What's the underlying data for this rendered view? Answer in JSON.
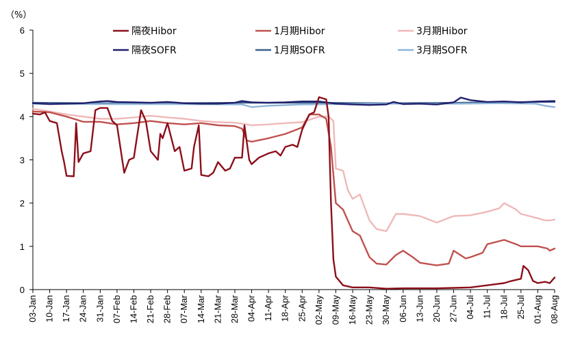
{
  "chart_data": {
    "type": "line",
    "title": "",
    "xlabel": "",
    "ylabel": "",
    "unit_label": "（%）",
    "ylim": [
      0,
      6
    ],
    "yticks": [
      "0",
      "1",
      "2",
      "3",
      "4",
      "5",
      "6"
    ],
    "x_dates": [
      "2025-01-03",
      "2025-01-10",
      "2025-01-17",
      "2025-01-24",
      "2025-01-31",
      "2025-02-07",
      "2025-02-14",
      "2025-02-21",
      "2025-02-28",
      "2025-03-07",
      "2025-03-14",
      "2025-03-21",
      "2025-03-28",
      "2025-04-04",
      "2025-04-11",
      "2025-04-18",
      "2025-04-25",
      "2025-05-02",
      "2025-05-09",
      "2025-05-16",
      "2025-05-23",
      "2025-05-30",
      "2025-06-06",
      "2025-06-13",
      "2025-06-20",
      "2025-06-27",
      "2025-07-04",
      "2025-07-11",
      "2025-07-18",
      "2025-07-25",
      "2025-08-01",
      "2025-08-08"
    ],
    "xtick_labels": [
      "03-Jan",
      "10-Jan",
      "17-Jan",
      "24-Jan",
      "31-Jan",
      "07-Feb",
      "14-Feb",
      "21-Feb",
      "28-Feb",
      "07-Mar",
      "14-Mar",
      "21-Mar",
      "28-Mar",
      "04-Apr",
      "11-Apr",
      "18-Apr",
      "25-Apr",
      "02-May",
      "09-May",
      "16-May",
      "23-May",
      "30-May",
      "06-Jun",
      "13-Jun",
      "20-Jun",
      "27-Jun",
      "04-Jul",
      "11-Jul",
      "18-Jul",
      "25-Jul",
      "01-Aug",
      "08-Aug"
    ],
    "grid": false,
    "legend_position": "top",
    "series": [
      {
        "name": "隔夜Hibor",
        "color": "#8b0f1a",
        "x": [
          "2025-01-03",
          "2025-01-06",
          "2025-01-08",
          "2025-01-10",
          "2025-01-13",
          "2025-01-15",
          "2025-01-16",
          "2025-01-17",
          "2025-01-20",
          "2025-01-21",
          "2025-01-22",
          "2025-01-24",
          "2025-01-27",
          "2025-01-29",
          "2025-01-31",
          "2025-02-03",
          "2025-02-05",
          "2025-02-07",
          "2025-02-10",
          "2025-02-12",
          "2025-02-14",
          "2025-02-17",
          "2025-02-19",
          "2025-02-21",
          "2025-02-24",
          "2025-02-25",
          "2025-02-26",
          "2025-02-28",
          "2025-03-03",
          "2025-03-05",
          "2025-03-07",
          "2025-03-10",
          "2025-03-11",
          "2025-03-13",
          "2025-03-14",
          "2025-03-17",
          "2025-03-19",
          "2025-03-21",
          "2025-03-24",
          "2025-03-26",
          "2025-03-28",
          "2025-03-31",
          "2025-04-01",
          "2025-04-03",
          "2025-04-04",
          "2025-04-07",
          "2025-04-09",
          "2025-04-11",
          "2025-04-14",
          "2025-04-16",
          "2025-04-18",
          "2025-04-21",
          "2025-04-23",
          "2025-04-25",
          "2025-04-28",
          "2025-04-30",
          "2025-05-02",
          "2025-05-05",
          "2025-05-06",
          "2025-05-07",
          "2025-05-08",
          "2025-05-09",
          "2025-05-12",
          "2025-05-16",
          "2025-05-23",
          "2025-05-30",
          "2025-06-06",
          "2025-06-13",
          "2025-06-20",
          "2025-06-27",
          "2025-07-04",
          "2025-07-11",
          "2025-07-18",
          "2025-07-21",
          "2025-07-25",
          "2025-07-26",
          "2025-07-28",
          "2025-07-30",
          "2025-08-01",
          "2025-08-04",
          "2025-08-06",
          "2025-08-08"
        ],
        "y": [
          4.07,
          4.05,
          4.1,
          3.9,
          3.85,
          3.2,
          2.95,
          2.63,
          2.62,
          3.85,
          2.95,
          3.15,
          3.2,
          4.15,
          4.2,
          4.2,
          3.9,
          3.8,
          2.7,
          3.0,
          3.05,
          4.15,
          3.9,
          3.2,
          3.0,
          3.6,
          3.5,
          3.85,
          3.2,
          3.3,
          2.75,
          2.8,
          3.3,
          3.8,
          2.65,
          2.62,
          2.7,
          2.95,
          2.75,
          2.8,
          3.05,
          3.05,
          3.8,
          3.0,
          2.9,
          3.05,
          3.1,
          3.15,
          3.2,
          3.1,
          3.3,
          3.35,
          3.3,
          3.7,
          4.05,
          4.1,
          4.45,
          4.4,
          4.0,
          2.0,
          0.7,
          0.3,
          0.1,
          0.05,
          0.05,
          0.02,
          0.03,
          0.03,
          0.03,
          0.04,
          0.05,
          0.1,
          0.15,
          0.2,
          0.25,
          0.55,
          0.45,
          0.2,
          0.15,
          0.18,
          0.15,
          0.28
        ]
      },
      {
        "name": "1月期Hibor",
        "color": "#c0504d",
        "x": [
          "2025-01-03",
          "2025-01-10",
          "2025-01-17",
          "2025-01-24",
          "2025-01-31",
          "2025-02-07",
          "2025-02-14",
          "2025-02-21",
          "2025-02-28",
          "2025-03-07",
          "2025-03-14",
          "2025-03-21",
          "2025-03-28",
          "2025-03-31",
          "2025-04-02",
          "2025-04-04",
          "2025-04-11",
          "2025-04-18",
          "2025-04-25",
          "2025-04-28",
          "2025-05-02",
          "2025-05-05",
          "2025-05-07",
          "2025-05-09",
          "2025-05-12",
          "2025-05-16",
          "2025-05-19",
          "2025-05-23",
          "2025-05-26",
          "2025-05-30",
          "2025-06-03",
          "2025-06-06",
          "2025-06-10",
          "2025-06-13",
          "2025-06-20",
          "2025-06-25",
          "2025-06-27",
          "2025-07-02",
          "2025-07-04",
          "2025-07-09",
          "2025-07-11",
          "2025-07-18",
          "2025-07-23",
          "2025-07-25",
          "2025-08-01",
          "2025-08-05",
          "2025-08-06",
          "2025-08-08"
        ],
        "y": [
          4.12,
          4.1,
          4.0,
          3.88,
          3.88,
          3.82,
          3.85,
          3.9,
          3.85,
          3.82,
          3.85,
          3.8,
          3.78,
          3.72,
          3.45,
          3.42,
          3.5,
          3.6,
          3.75,
          4.05,
          4.05,
          3.95,
          3.3,
          2.0,
          1.85,
          1.35,
          1.25,
          0.75,
          0.6,
          0.58,
          0.8,
          0.9,
          0.75,
          0.62,
          0.56,
          0.6,
          0.9,
          0.72,
          0.75,
          0.85,
          1.05,
          1.15,
          1.05,
          1.0,
          1.0,
          0.95,
          0.9,
          0.95
        ]
      },
      {
        "name": "3月期Hibor",
        "color": "#f0b8b8",
        "x": [
          "2025-01-03",
          "2025-01-10",
          "2025-01-17",
          "2025-01-24",
          "2025-01-31",
          "2025-02-07",
          "2025-02-14",
          "2025-02-21",
          "2025-02-28",
          "2025-03-07",
          "2025-03-14",
          "2025-03-21",
          "2025-03-28",
          "2025-04-02",
          "2025-04-04",
          "2025-04-11",
          "2025-04-18",
          "2025-04-25",
          "2025-05-02",
          "2025-05-06",
          "2025-05-08",
          "2025-05-09",
          "2025-05-12",
          "2025-05-14",
          "2025-05-16",
          "2025-05-19",
          "2025-05-23",
          "2025-05-26",
          "2025-05-30",
          "2025-06-03",
          "2025-06-06",
          "2025-06-13",
          "2025-06-20",
          "2025-06-27",
          "2025-07-04",
          "2025-07-11",
          "2025-07-16",
          "2025-07-18",
          "2025-07-23",
          "2025-07-25",
          "2025-08-01",
          "2025-08-04",
          "2025-08-06",
          "2025-08-08"
        ],
        "y": [
          4.18,
          4.12,
          4.05,
          4.0,
          3.95,
          3.95,
          3.98,
          4.02,
          3.98,
          3.95,
          3.9,
          3.87,
          3.86,
          3.82,
          3.8,
          3.82,
          3.85,
          3.87,
          4.0,
          4.0,
          3.9,
          2.8,
          2.75,
          2.3,
          2.1,
          2.2,
          1.6,
          1.4,
          1.35,
          1.75,
          1.75,
          1.7,
          1.55,
          1.7,
          1.72,
          1.8,
          1.88,
          2.0,
          1.85,
          1.75,
          1.65,
          1.6,
          1.6,
          1.62
        ]
      },
      {
        "name": "隔夜SOFR",
        "color": "#1f1f6b",
        "x": [
          "2025-01-03",
          "2025-01-10",
          "2025-01-17",
          "2025-01-24",
          "2025-01-31",
          "2025-02-03",
          "2025-02-07",
          "2025-02-14",
          "2025-02-21",
          "2025-02-28",
          "2025-03-07",
          "2025-03-14",
          "2025-03-21",
          "2025-03-28",
          "2025-03-31",
          "2025-04-04",
          "2025-04-11",
          "2025-04-18",
          "2025-04-25",
          "2025-05-02",
          "2025-05-09",
          "2025-05-16",
          "2025-05-23",
          "2025-05-30",
          "2025-06-02",
          "2025-06-06",
          "2025-06-13",
          "2025-06-20",
          "2025-06-27",
          "2025-06-30",
          "2025-07-04",
          "2025-07-11",
          "2025-07-18",
          "2025-07-25",
          "2025-08-01",
          "2025-08-08"
        ],
        "y": [
          4.31,
          4.29,
          4.3,
          4.31,
          4.35,
          4.36,
          4.34,
          4.33,
          4.32,
          4.34,
          4.31,
          4.3,
          4.3,
          4.32,
          4.36,
          4.33,
          4.32,
          4.33,
          4.35,
          4.35,
          4.3,
          4.28,
          4.27,
          4.28,
          4.34,
          4.29,
          4.3,
          4.28,
          4.33,
          4.44,
          4.38,
          4.34,
          4.35,
          4.33,
          4.35,
          4.36
        ]
      },
      {
        "name": "1月期SOFR",
        "color": "#3a5f8f",
        "x": [
          "2025-01-03",
          "2025-01-31",
          "2025-02-28",
          "2025-03-31",
          "2025-04-30",
          "2025-05-30",
          "2025-06-30",
          "2025-07-31",
          "2025-08-08"
        ],
        "y": [
          4.32,
          4.31,
          4.31,
          4.32,
          4.32,
          4.31,
          4.32,
          4.34,
          4.34
        ]
      },
      {
        "name": "3月期SOFR",
        "color": "#8eb4d9",
        "x": [
          "2025-01-03",
          "2025-01-31",
          "2025-02-28",
          "2025-03-31",
          "2025-04-04",
          "2025-04-11",
          "2025-04-25",
          "2025-05-30",
          "2025-06-30",
          "2025-07-15",
          "2025-07-31",
          "2025-08-04",
          "2025-08-08"
        ],
        "y": [
          4.3,
          4.29,
          4.29,
          4.28,
          4.22,
          4.25,
          4.28,
          4.3,
          4.3,
          4.31,
          4.3,
          4.25,
          4.22
        ]
      }
    ]
  }
}
